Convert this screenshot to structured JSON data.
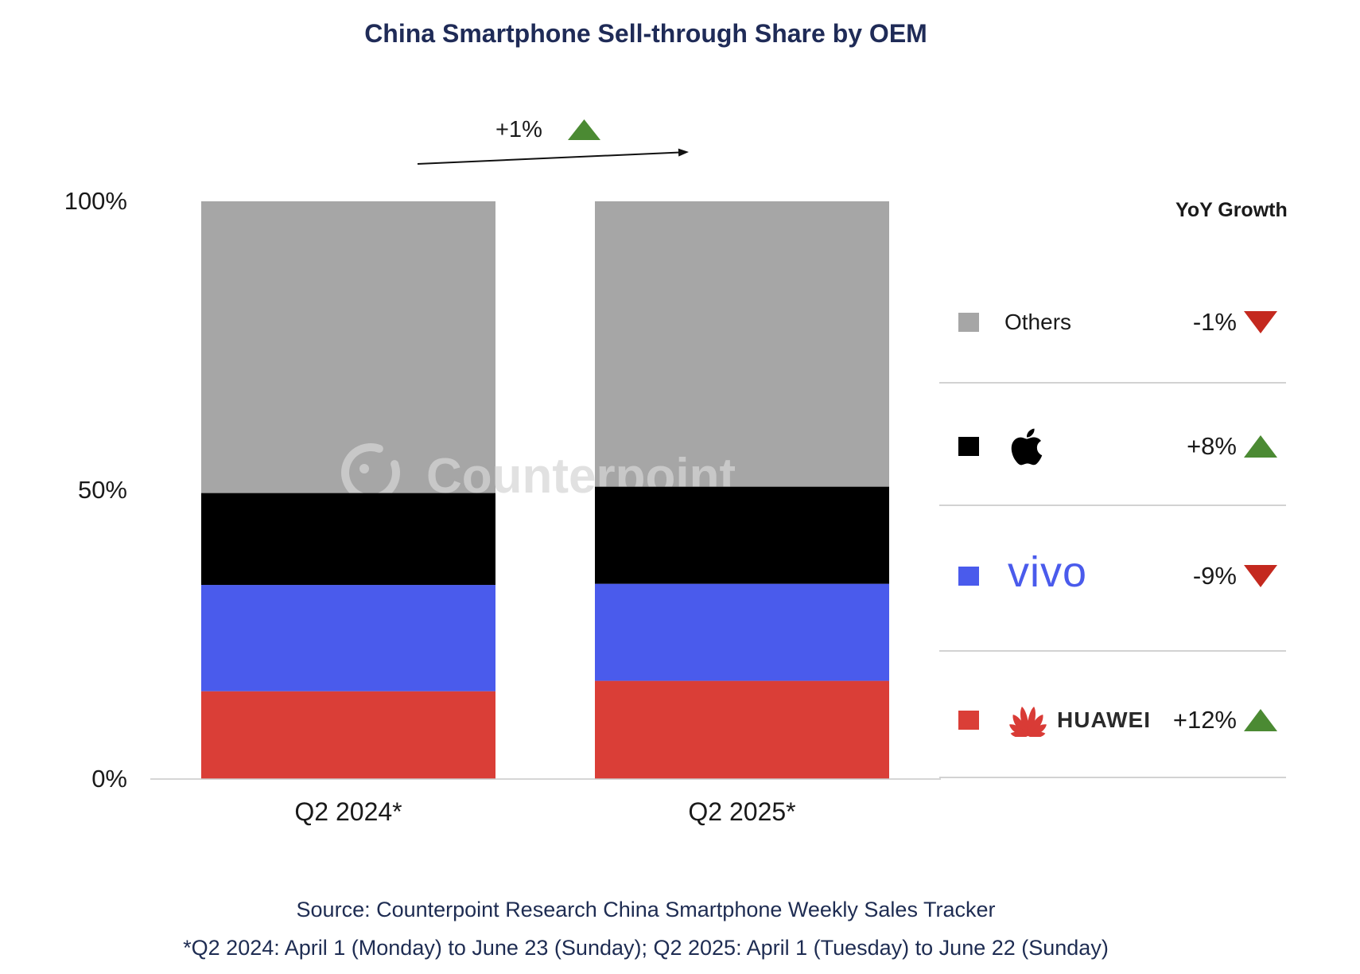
{
  "colors": {
    "title": "#1f2b57",
    "footer_text": "#1e2c52",
    "up": "#4b8a33",
    "down": "#c4291f"
  },
  "chart_data": {
    "type": "bar",
    "stacked": true,
    "title": "China Smartphone Sell-through Share by OEM",
    "categories": [
      "Q2 2024*",
      "Q2 2025*"
    ],
    "ylim": [
      0,
      100
    ],
    "y_ticks": [
      {
        "value": 100,
        "label": "100%"
      },
      {
        "value": 50,
        "label": "50%"
      },
      {
        "value": 0,
        "label": "0%"
      }
    ],
    "grid": false,
    "legend_position": "right",
    "legend_title": "YoY Growth",
    "series": [
      {
        "name": "HUAWEI",
        "logo_icon": "huawei-flower-logo-icon",
        "color": "#da3e37",
        "values": [
          15.2,
          17.0
        ],
        "yoy_growth": "+12%",
        "trend": "up"
      },
      {
        "name": "vivo",
        "color": "#4a5bec",
        "values": [
          18.4,
          16.8
        ],
        "yoy_growth": "-9%",
        "trend": "down"
      },
      {
        "logo_icon": "apple-logo-icon",
        "color": "#000000",
        "values": [
          15.9,
          16.8
        ],
        "yoy_growth": "+8%",
        "trend": "up"
      },
      {
        "name": "Others",
        "color": "#a6a6a6",
        "values": [
          50.5,
          49.4
        ],
        "yoy_growth": "-1%",
        "trend": "down"
      }
    ],
    "total_change": {
      "label": "+1%",
      "trend": "up"
    },
    "watermark": "Counterpoint"
  },
  "source": "Source: Counterpoint Research China Smartphone Weekly Sales Tracker",
  "footnote": "*Q2 2024: April 1 (Monday) to June 23 (Sunday); Q2 2025: April 1 (Tuesday) to June 22 (Sunday)"
}
